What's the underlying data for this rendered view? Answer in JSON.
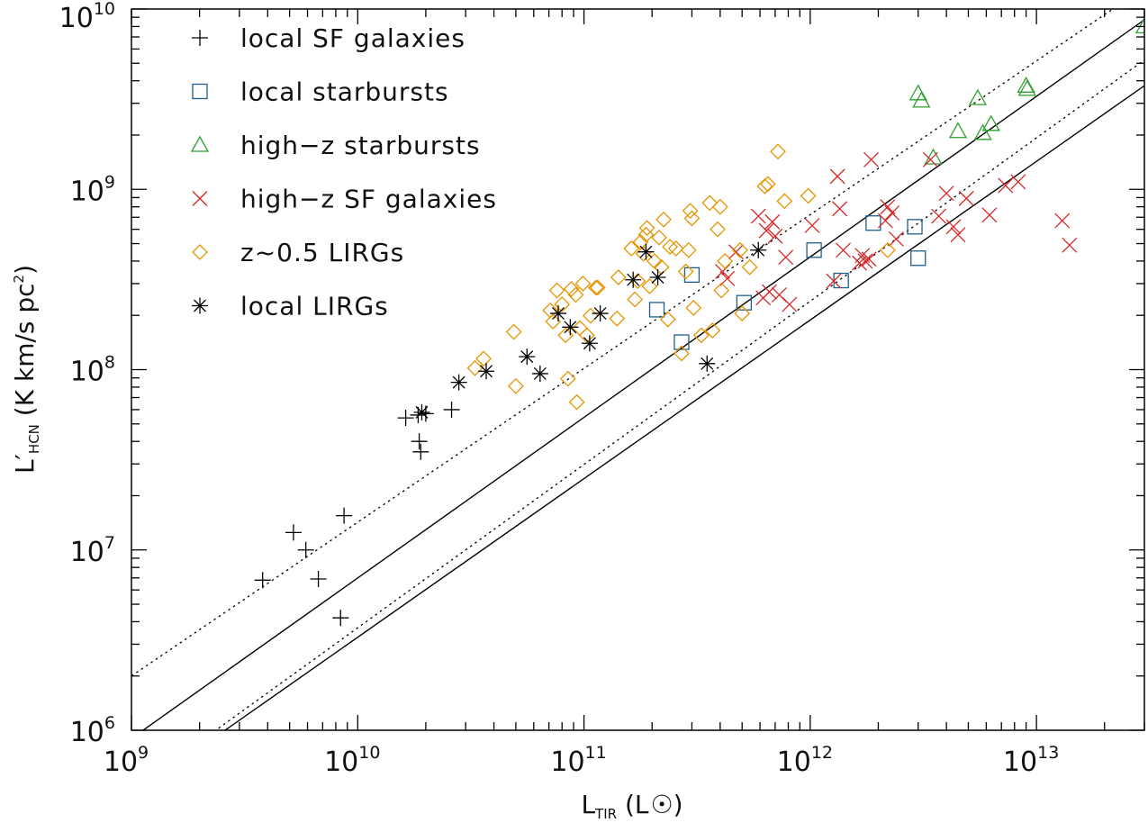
{
  "chart_data": {
    "type": "scatter",
    "title": "",
    "x_scale": "log",
    "y_scale": "log",
    "xlim": [
      1000000000.0,
      30000000000000.0
    ],
    "ylim": [
      1000000.0,
      10000000000.0
    ],
    "grid": false,
    "legend_position": "top-left",
    "xlabel": {
      "main": "L",
      "sub": "TIR",
      "unit_open": " (L",
      "unit_close": ")"
    },
    "ylabel": {
      "main": "L′",
      "sub": "HCN",
      "unit_open": " (K km/s pc",
      "unit_sup": "2",
      "unit_close": ")"
    },
    "x_tick_labels": [
      {
        "value": 1000000000.0,
        "base": "10",
        "exp": "9"
      },
      {
        "value": 10000000000.0,
        "base": "10",
        "exp": "10"
      },
      {
        "value": 100000000000.0,
        "base": "10",
        "exp": "11"
      },
      {
        "value": 1000000000000.0,
        "base": "10",
        "exp": "12"
      },
      {
        "value": 10000000000000.0,
        "base": "10",
        "exp": "13"
      }
    ],
    "y_tick_labels": [
      {
        "value": 1000000.0,
        "base": "10",
        "exp": "6"
      },
      {
        "value": 10000000.0,
        "base": "10",
        "exp": "7"
      },
      {
        "value": 100000000.0,
        "base": "10",
        "exp": "8"
      },
      {
        "value": 1000000000.0,
        "base": "10",
        "exp": "9"
      },
      {
        "value": 10000000000.0,
        "base": "10",
        "exp": "10"
      }
    ],
    "reference_lines": [
      {
        "style": "solid",
        "points": [
          [
            1000000000.0,
            900000.0
          ],
          [
            35000000000000.0,
            10000000000.0
          ]
        ]
      },
      {
        "style": "solid",
        "points": [
          [
            2300000000.0,
            900000.0
          ],
          [
            35000000000000.0,
            4300000000.0
          ]
        ]
      },
      {
        "style": "dotted",
        "points": [
          [
            1000000000.0,
            2000000.0
          ],
          [
            35000000000000.0,
            15000000000.0
          ]
        ]
      },
      {
        "style": "dotted",
        "points": [
          [
            2100000000.0,
            900000.0
          ],
          [
            35000000000000.0,
            6000000000.0
          ]
        ]
      }
    ],
    "series": [
      {
        "name": "local SF galaxies",
        "marker": "plus",
        "color": "#000000",
        "points": [
          [
            3800000000.0,
            6800000.0
          ],
          [
            5200000000.0,
            12500000.0
          ],
          [
            5900000000.0,
            10000000.0
          ],
          [
            6700000000.0,
            6900000.0
          ],
          [
            8400000000.0,
            4200000.0
          ],
          [
            8700000000.0,
            15500000.0
          ],
          [
            16300000000.0,
            54000000.0
          ],
          [
            18500000000.0,
            56000000.0
          ],
          [
            18700000000.0,
            40000000.0
          ],
          [
            19000000000.0,
            35000000.0
          ],
          [
            20000000000.0,
            57000000.0
          ],
          [
            26000000000.0,
            60000000.0
          ]
        ]
      },
      {
        "name": "local starbursts",
        "marker": "square",
        "color": "#1f5f8b",
        "points": [
          [
            210000000000.0,
            215000000.0
          ],
          [
            270000000000.0,
            142000000.0
          ],
          [
            300000000000.0,
            335000000.0
          ],
          [
            510000000000.0,
            235000000.0
          ],
          [
            1040000000000.0,
            460000000.0
          ],
          [
            1370000000000.0,
            312000000.0
          ],
          [
            1900000000000.0,
            650000000.0
          ],
          [
            2900000000000.0,
            620000000.0
          ],
          [
            3000000000000.0,
            415000000.0
          ]
        ]
      },
      {
        "name": "high−z starbursts",
        "marker": "triangle",
        "color": "#2ca02c",
        "points": [
          [
            3000000000000.0,
            3400000000.0
          ],
          [
            3100000000000.0,
            3100000000.0
          ],
          [
            3500000000000.0,
            1500000000.0
          ],
          [
            4500000000000.0,
            2100000000.0
          ],
          [
            5500000000000.0,
            3200000000.0
          ],
          [
            5800000000000.0,
            2050000000.0
          ],
          [
            6300000000000.0,
            2300000000.0
          ],
          [
            9000000000000.0,
            3750000000.0
          ],
          [
            9100000000000.0,
            3600000000.0
          ],
          [
            30000000000000.0,
            8000000000.0
          ]
        ]
      },
      {
        "name": "high−z SF galaxies",
        "marker": "cross",
        "color": "#d62728",
        "points": [
          [
            410000000000.0,
            350000000.0
          ],
          [
            430000000000.0,
            320000000.0
          ],
          [
            470000000000.0,
            450000000.0
          ],
          [
            590000000000.0,
            710000000.0
          ],
          [
            620000000000.0,
            250000000.0
          ],
          [
            640000000000.0,
            590000000.0
          ],
          [
            660000000000.0,
            270000000.0
          ],
          [
            680000000000.0,
            660000000.0
          ],
          [
            700000000000.0,
            550000000.0
          ],
          [
            730000000000.0,
            260000000.0
          ],
          [
            780000000000.0,
            420000000.0
          ],
          [
            810000000000.0,
            230000000.0
          ],
          [
            1020000000000.0,
            630000000.0
          ],
          [
            1270000000000.0,
            310000000.0
          ],
          [
            1320000000000.0,
            1180000000.0
          ],
          [
            1350000000000.0,
            780000000.0
          ],
          [
            1400000000000.0,
            460000000.0
          ],
          [
            1650000000000.0,
            390000000.0
          ],
          [
            1700000000000.0,
            430000000.0
          ],
          [
            1750000000000.0,
            400000000.0
          ],
          [
            1820000000000.0,
            410000000.0
          ],
          [
            1860000000000.0,
            1460000000.0
          ],
          [
            2150000000000.0,
            670000000.0
          ],
          [
            2200000000000.0,
            800000000.0
          ],
          [
            2300000000000.0,
            740000000.0
          ],
          [
            2400000000000.0,
            530000000.0
          ],
          [
            3400000000000.0,
            1460000000.0
          ],
          [
            3700000000000.0,
            710000000.0
          ],
          [
            4000000000000.0,
            950000000.0
          ],
          [
            4300000000000.0,
            620000000.0
          ],
          [
            4500000000000.0,
            560000000.0
          ],
          [
            4900000000000.0,
            890000000.0
          ],
          [
            6200000000000.0,
            720000000.0
          ],
          [
            7300000000000.0,
            1050000000.0
          ],
          [
            8300000000000.0,
            1100000000.0
          ],
          [
            13000000000000.0,
            670000000.0
          ],
          [
            14000000000000.0,
            490000000.0
          ]
        ]
      },
      {
        "name": "z~0.5 LIRGs",
        "marker": "diamond",
        "color": "#e69500",
        "points": [
          [
            33000000000.0,
            102000000.0
          ],
          [
            36000000000.0,
            115000000.0
          ],
          [
            49000000000.0,
            162000000.0
          ],
          [
            50000000000.0,
            81000000.0
          ],
          [
            71000000000.0,
            213000000.0
          ],
          [
            73000000000.0,
            185000000.0
          ],
          [
            76000000000.0,
            275000000.0
          ],
          [
            80000000000.0,
            230000000.0
          ],
          [
            83000000000.0,
            155000000.0
          ],
          [
            85000000000.0,
            89000000.0
          ],
          [
            88000000000.0,
            280000000.0
          ],
          [
            92000000000.0,
            260000000.0
          ],
          [
            93000000000.0,
            66000000.0
          ],
          [
            96000000000.0,
            170000000.0
          ],
          [
            99000000000.0,
            300000000.0
          ],
          [
            103000000000.0,
            155000000.0
          ],
          [
            107000000000.0,
            199000000.0
          ],
          [
            113000000000.0,
            285000000.0
          ],
          [
            115000000000.0,
            285000000.0
          ],
          [
            140000000000.0,
            192000000.0
          ],
          [
            142000000000.0,
            325000000.0
          ],
          [
            162000000000.0,
            470000000.0
          ],
          [
            168000000000.0,
            245000000.0
          ],
          [
            173000000000.0,
            310000000.0
          ],
          [
            178000000000.0,
            510000000.0
          ],
          [
            183000000000.0,
            440000000.0
          ],
          [
            188000000000.0,
            560000000.0
          ],
          [
            190000000000.0,
            610000000.0
          ],
          [
            195000000000.0,
            290000000.0
          ],
          [
            205000000000.0,
            400000000.0
          ],
          [
            215000000000.0,
            540000000.0
          ],
          [
            220000000000.0,
            370000000.0
          ],
          [
            225000000000.0,
            680000000.0
          ],
          [
            235000000000.0,
            190000000.0
          ],
          [
            240000000000.0,
            480000000.0
          ],
          [
            255000000000.0,
            470000000.0
          ],
          [
            270000000000.0,
            123000000.0
          ],
          [
            282000000000.0,
            350000000.0
          ],
          [
            290000000000.0,
            460000000.0
          ],
          [
            295000000000.0,
            760000000.0
          ],
          [
            300000000000.0,
            690000000.0
          ],
          [
            305000000000.0,
            220000000.0
          ],
          [
            330000000000.0,
            155000000.0
          ],
          [
            360000000000.0,
            840000000.0
          ],
          [
            370000000000.0,
            165000000.0
          ],
          [
            390000000000.0,
            600000000.0
          ],
          [
            400000000000.0,
            800000000.0
          ],
          [
            405000000000.0,
            275000000.0
          ],
          [
            420000000000.0,
            400000000.0
          ],
          [
            490000000000.0,
            460000000.0
          ],
          [
            500000000000.0,
            205000000.0
          ],
          [
            540000000000.0,
            370000000.0
          ],
          [
            630000000000.0,
            1040000000.0
          ],
          [
            650000000000.0,
            1070000000.0
          ],
          [
            720000000000.0,
            1620000000.0
          ],
          [
            770000000000.0,
            860000000.0
          ],
          [
            980000000000.0,
            920000000.0
          ],
          [
            2200000000000.0,
            460000000.0
          ]
        ]
      },
      {
        "name": "local LIRGs",
        "marker": "asterisk",
        "color": "#000000",
        "points": [
          [
            19200000000.0,
            58000000.0
          ],
          [
            28000000000.0,
            85000000.0
          ],
          [
            37000000000.0,
            98000000.0
          ],
          [
            56000000000.0,
            118000000.0
          ],
          [
            64000000000.0,
            95000000.0
          ],
          [
            77000000000.0,
            205000000.0
          ],
          [
            87000000000.0,
            172000000.0
          ],
          [
            106000000000.0,
            140000000.0
          ],
          [
            118000000000.0,
            205000000.0
          ],
          [
            165000000000.0,
            315000000.0
          ],
          [
            188000000000.0,
            450000000.0
          ],
          [
            212000000000.0,
            325000000.0
          ],
          [
            350000000000.0,
            108000000.0
          ],
          [
            590000000000.0,
            460000000.0
          ]
        ]
      }
    ]
  }
}
